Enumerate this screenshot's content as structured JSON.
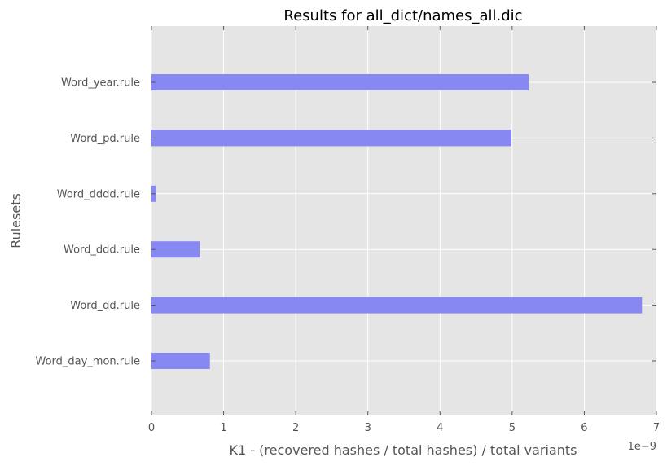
{
  "chart_data": {
    "type": "bar",
    "orientation": "horizontal",
    "title": "Results for all_dict/names_all.dic",
    "xlabel": "K1 - (recovered hashes / total hashes) / total variants",
    "ylabel": "Rulesets",
    "x_offset_label": "1e−9",
    "xlim": [
      0,
      7
    ],
    "x_ticks": [
      "0",
      "1",
      "2",
      "3",
      "4",
      "5",
      "6",
      "7"
    ],
    "categories": [
      "Word_year.rule",
      "Word_pd.rule",
      "Word_dddd.rule",
      "Word_ddd.rule",
      "Word_dd.rule",
      "Word_day_mon.rule"
    ],
    "values": [
      5.23,
      4.99,
      0.06,
      0.67,
      6.8,
      0.81
    ],
    "value_scale": "1e-9",
    "grid": true,
    "bar_color": "#8888f2",
    "background_color": "#e5e5e5",
    "grid_color": "#ffffff"
  }
}
